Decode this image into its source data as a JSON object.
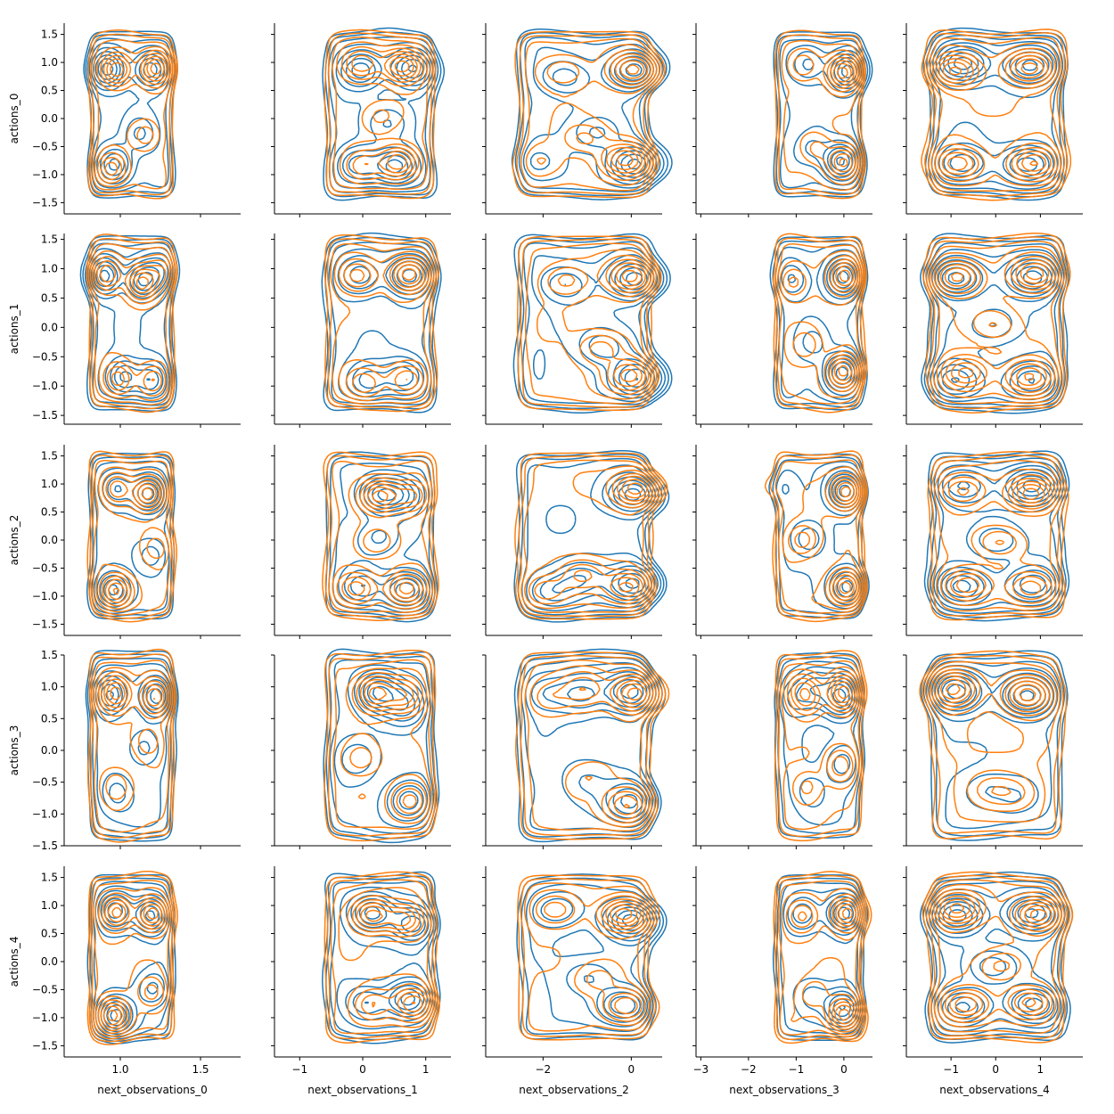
{
  "chart_data": {
    "type": "kde-contour-pair-grid",
    "rows": [
      "actions_0",
      "actions_1",
      "actions_2",
      "actions_3",
      "actions_4"
    ],
    "columns": [
      "next_observations_0",
      "next_observations_1",
      "next_observations_2",
      "next_observations_3",
      "next_observations_4"
    ],
    "series": [
      {
        "color": "#1f77b4"
      },
      {
        "color": "#ff7f0e"
      }
    ],
    "x_axes": [
      {
        "xlim": [
          0.65,
          1.75
        ],
        "ticks": [
          1.0,
          1.5
        ],
        "tick_labels": [
          "1.0",
          "1.5"
        ]
      },
      {
        "xlim": [
          -1.4,
          1.4
        ],
        "ticks": [
          -1,
          0,
          1
        ],
        "tick_labels": [
          "−1",
          "0",
          "1"
        ]
      },
      {
        "xlim": [
          -3.3,
          0.7
        ],
        "ticks": [
          -2,
          0
        ],
        "tick_labels": [
          "−2",
          "0"
        ]
      },
      {
        "xlim": [
          -3.1,
          0.6
        ],
        "ticks": [
          -3,
          -2,
          -1,
          0
        ],
        "tick_labels": [
          "−3",
          "−2",
          "−1",
          "0"
        ]
      },
      {
        "xlim": [
          -2.0,
          1.95
        ],
        "ticks": [
          -1,
          0,
          1
        ],
        "tick_labels": [
          "−1",
          "0",
          "1"
        ]
      }
    ],
    "y_axes": [
      {
        "ylim": [
          -1.7,
          1.7
        ],
        "ticks": [
          -1.5,
          -1.0,
          -0.5,
          0.0,
          0.5,
          1.0,
          1.5
        ],
        "tick_labels": [
          "−1.5",
          "−1.0",
          "−0.5",
          "0.0",
          "0.5",
          "1.0",
          "1.5"
        ]
      },
      {
        "ylim": [
          -1.65,
          1.6
        ],
        "ticks": [
          -1.5,
          -1.0,
          -0.5,
          0.0,
          0.5,
          1.0,
          1.5
        ],
        "tick_labels": [
          "−1.5",
          "−1.0",
          "−0.5",
          "0.0",
          "0.5",
          "1.0",
          "1.5"
        ]
      },
      {
        "ylim": [
          -1.7,
          1.7
        ],
        "ticks": [
          -1.5,
          -1.0,
          -0.5,
          0.0,
          0.5,
          1.0,
          1.5
        ],
        "tick_labels": [
          "−1.5",
          "−1.0",
          "−0.5",
          "0.0",
          "0.5",
          "1.0",
          "1.5"
        ]
      },
      {
        "ylim": [
          -1.5,
          1.5
        ],
        "ticks": [
          -1.5,
          -1.0,
          -0.5,
          0.0,
          0.5,
          1.0,
          1.5
        ],
        "tick_labels": [
          "−1.5",
          "−1.0",
          "−0.5",
          "0.0",
          "0.5",
          "1.0",
          "1.5"
        ]
      },
      {
        "ylim": [
          -1.7,
          1.7
        ],
        "ticks": [
          -1.5,
          -1.0,
          -0.5,
          0.0,
          0.5,
          1.0,
          1.5
        ],
        "tick_labels": [
          "−1.5",
          "−1.0",
          "−0.5",
          "0.0",
          "0.5",
          "1.0",
          "1.5"
        ]
      }
    ],
    "x_spans": [
      {
        "lo": 0.82,
        "hi": 1.32
      },
      {
        "lo": -0.55,
        "hi": 1.1
      },
      {
        "lo": -2.5,
        "hi": 0.35
      },
      {
        "lo": -1.4,
        "hi": 0.35
      },
      {
        "lo": -1.4,
        "hi": 1.45
      }
    ],
    "y_span": {
      "lo": -1.35,
      "hi": 1.5
    },
    "contour_levels": 9,
    "modes": [
      [
        [
          [
            0.95,
            0.9,
            1.0
          ],
          [
            1.2,
            0.9,
            1.1
          ],
          [
            0.95,
            -0.85,
            0.9
          ],
          [
            1.15,
            -0.3,
            0.35
          ]
        ],
        [
          [
            0.9,
            0.85,
            0.9
          ],
          [
            1.15,
            0.8,
            1.0
          ],
          [
            1.25,
            0.9,
            0.5
          ],
          [
            1.0,
            -0.8,
            0.8
          ],
          [
            1.2,
            -0.85,
            0.6
          ]
        ],
        [
          [
            1.2,
            0.85,
            1.1
          ],
          [
            0.95,
            0.85,
            0.6
          ],
          [
            0.95,
            -0.85,
            1.1
          ],
          [
            1.2,
            -0.2,
            0.3
          ]
        ],
        [
          [
            0.95,
            0.9,
            1.0
          ],
          [
            1.2,
            0.9,
            1.0
          ],
          [
            1.0,
            -0.6,
            0.4
          ],
          [
            1.15,
            0.1,
            0.3
          ]
        ],
        [
          [
            0.95,
            0.9,
            0.9
          ],
          [
            1.2,
            0.8,
            1.1
          ],
          [
            0.95,
            -0.9,
            1.0
          ],
          [
            1.2,
            -0.5,
            0.4
          ]
        ]
      ],
      [
        [
          [
            0.7,
            0.95,
            1.1
          ],
          [
            0.05,
            0.9,
            0.9
          ],
          [
            0.6,
            -0.85,
            1.0
          ],
          [
            0.0,
            -0.8,
            0.6
          ],
          [
            0.3,
            0.0,
            0.3
          ]
        ],
        [
          [
            0.7,
            0.9,
            1.1
          ],
          [
            0.0,
            0.85,
            0.8
          ],
          [
            0.6,
            -0.9,
            0.7
          ],
          [
            0.1,
            -0.9,
            0.6
          ]
        ],
        [
          [
            0.2,
            0.85,
            1.0
          ],
          [
            0.7,
            0.85,
            0.7
          ],
          [
            0.6,
            -0.85,
            1.0
          ],
          [
            -0.1,
            -0.8,
            0.7
          ],
          [
            0.3,
            0.0,
            0.3
          ]
        ],
        [
          [
            0.2,
            0.9,
            1.1
          ],
          [
            0.7,
            0.8,
            0.8
          ],
          [
            0.8,
            -0.85,
            0.6
          ],
          [
            0.0,
            -0.2,
            0.3
          ]
        ],
        [
          [
            0.1,
            0.9,
            1.0
          ],
          [
            0.7,
            0.7,
            0.8
          ],
          [
            0.75,
            -0.75,
            1.0
          ],
          [
            0.1,
            -0.7,
            0.5
          ]
        ]
      ],
      [
        [
          [
            0.0,
            0.9,
            1.2
          ],
          [
            0.0,
            -0.8,
            1.0
          ],
          [
            -1.5,
            0.8,
            0.4
          ],
          [
            -0.9,
            -0.3,
            0.4
          ],
          [
            -2.0,
            -0.8,
            0.2
          ]
        ],
        [
          [
            0.0,
            0.8,
            1.2
          ],
          [
            0.0,
            -0.8,
            0.9
          ],
          [
            -1.6,
            0.8,
            0.4
          ],
          [
            -0.8,
            -0.4,
            0.4
          ]
        ],
        [
          [
            0.0,
            0.85,
            1.3
          ],
          [
            0.0,
            -0.85,
            0.9
          ],
          [
            -1.8,
            -0.9,
            0.5
          ],
          [
            -1.0,
            -0.7,
            0.5
          ]
        ],
        [
          [
            0.0,
            0.9,
            1.3
          ],
          [
            -1.0,
            0.9,
            0.5
          ],
          [
            -2.0,
            0.9,
            0.3
          ],
          [
            0.0,
            -0.8,
            0.8
          ],
          [
            -0.9,
            -0.5,
            0.2
          ]
        ],
        [
          [
            0.0,
            0.8,
            1.3
          ],
          [
            0.0,
            -0.8,
            1.0
          ],
          [
            -1.6,
            0.9,
            0.5
          ],
          [
            -0.9,
            -0.3,
            0.3
          ]
        ]
      ],
      [
        [
          [
            0.0,
            0.85,
            1.2
          ],
          [
            0.0,
            -0.8,
            1.1
          ],
          [
            -0.8,
            0.9,
            0.5
          ],
          [
            -0.6,
            -0.5,
            0.3
          ]
        ],
        [
          [
            0.0,
            0.85,
            1.2
          ],
          [
            0.0,
            -0.8,
            1.1
          ],
          [
            -1.1,
            0.8,
            0.4
          ],
          [
            -0.7,
            -0.3,
            0.3
          ]
        ],
        [
          [
            0.0,
            0.85,
            1.2
          ],
          [
            0.0,
            -0.85,
            1.1
          ],
          [
            -0.8,
            0.0,
            0.4
          ],
          [
            -1.4,
            0.9,
            0.2
          ]
        ],
        [
          [
            0.0,
            0.9,
            1.3
          ],
          [
            -0.7,
            0.9,
            0.6
          ],
          [
            -1.0,
            0.9,
            0.4
          ],
          [
            -0.8,
            -0.6,
            0.3
          ],
          [
            0.0,
            -0.2,
            0.5
          ]
        ],
        [
          [
            0.0,
            0.8,
            1.2
          ],
          [
            0.0,
            -0.9,
            1.1
          ],
          [
            -0.9,
            0.8,
            0.5
          ],
          [
            -0.6,
            -0.6,
            0.3
          ]
        ]
      ],
      [
        [
          [
            -0.75,
            0.9,
            1.1
          ],
          [
            0.8,
            0.9,
            1.1
          ],
          [
            -0.75,
            -0.8,
            0.8
          ],
          [
            0.8,
            -0.8,
            0.8
          ]
        ],
        [
          [
            -0.75,
            0.85,
            1.0
          ],
          [
            0.8,
            0.85,
            1.0
          ],
          [
            -0.75,
            -0.85,
            0.8
          ],
          [
            0.8,
            -0.85,
            0.8
          ],
          [
            0.0,
            0.0,
            0.3
          ]
        ],
        [
          [
            0.8,
            0.9,
            1.3
          ],
          [
            -0.6,
            0.9,
            0.6
          ],
          [
            -0.8,
            -0.85,
            0.9
          ],
          [
            0.7,
            -0.8,
            0.8
          ],
          [
            0.0,
            0.0,
            0.4
          ]
        ],
        [
          [
            -0.8,
            0.9,
            1.3
          ],
          [
            0.8,
            0.9,
            1.3
          ],
          [
            -0.2,
            -0.6,
            0.3
          ],
          [
            0.5,
            -0.7,
            0.3
          ]
        ],
        [
          [
            -0.8,
            0.9,
            1.1
          ],
          [
            0.8,
            0.9,
            1.1
          ],
          [
            -0.8,
            -0.8,
            0.9
          ],
          [
            0.7,
            -0.8,
            0.9
          ],
          [
            0.0,
            0.0,
            0.4
          ]
        ]
      ]
    ]
  }
}
